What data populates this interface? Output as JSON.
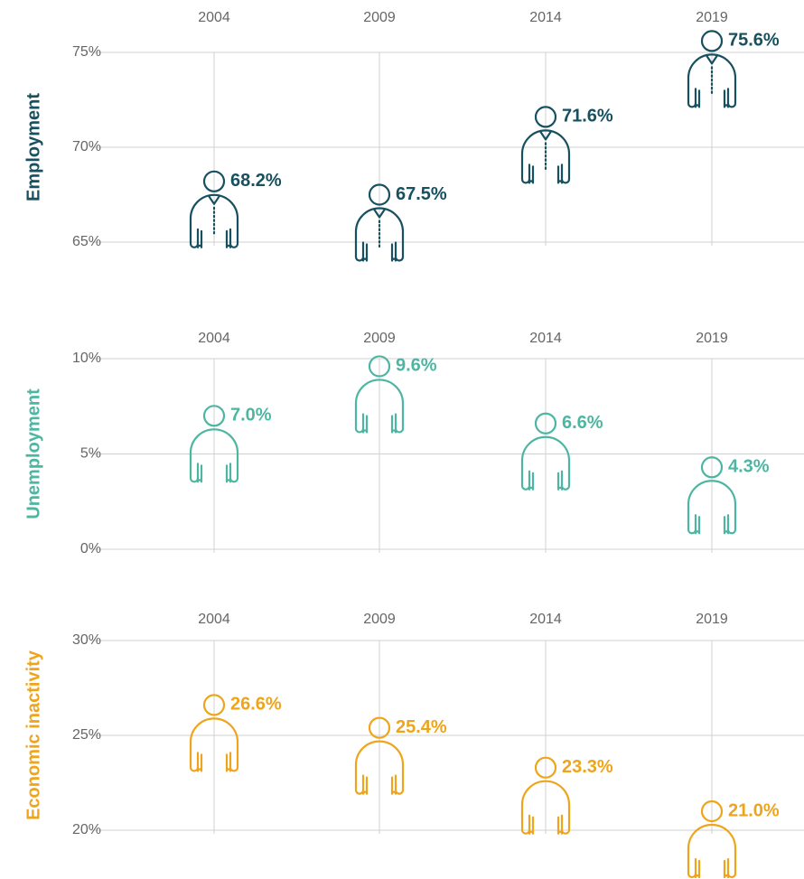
{
  "chart_data": [
    {
      "type": "pictogram",
      "y_label": "Employment",
      "color": "#17505f",
      "figure": "worker",
      "categories": [
        "2004",
        "2009",
        "2014",
        "2019"
      ],
      "values": [
        68.2,
        67.5,
        71.6,
        75.6
      ],
      "value_labels": [
        "68.2%",
        "67.5%",
        "71.6%",
        "75.6%"
      ],
      "ylim": [
        65,
        75
      ],
      "yticks": [
        {
          "value": 65,
          "label": "65%"
        },
        {
          "value": 70,
          "label": "70%"
        },
        {
          "value": 75,
          "label": "75%"
        }
      ],
      "grid": true
    },
    {
      "type": "pictogram",
      "y_label": "Unemployment",
      "color": "#4db6a2",
      "figure": "person",
      "categories": [
        "2004",
        "2009",
        "2014",
        "2019"
      ],
      "values": [
        7.0,
        9.6,
        6.6,
        4.3
      ],
      "value_labels": [
        "7.0%",
        "9.6%",
        "6.6%",
        "4.3%"
      ],
      "ylim": [
        0,
        10
      ],
      "yticks": [
        {
          "value": 0,
          "label": "0%"
        },
        {
          "value": 5,
          "label": "5%"
        },
        {
          "value": 10,
          "label": "10%"
        }
      ],
      "grid": true
    },
    {
      "type": "pictogram",
      "y_label": "Economic inactivity",
      "color": "#eea51b",
      "figure": "person",
      "categories": [
        "2004",
        "2009",
        "2014",
        "2019"
      ],
      "values": [
        26.6,
        25.4,
        23.3,
        21.0
      ],
      "value_labels": [
        "26.6%",
        "25.4%",
        "23.3%",
        "21.0%"
      ],
      "ylim": [
        20,
        30
      ],
      "yticks": [
        {
          "value": 20,
          "label": "20%"
        },
        {
          "value": 25,
          "label": "25%"
        },
        {
          "value": 30,
          "label": "30%"
        }
      ],
      "grid": true
    }
  ]
}
